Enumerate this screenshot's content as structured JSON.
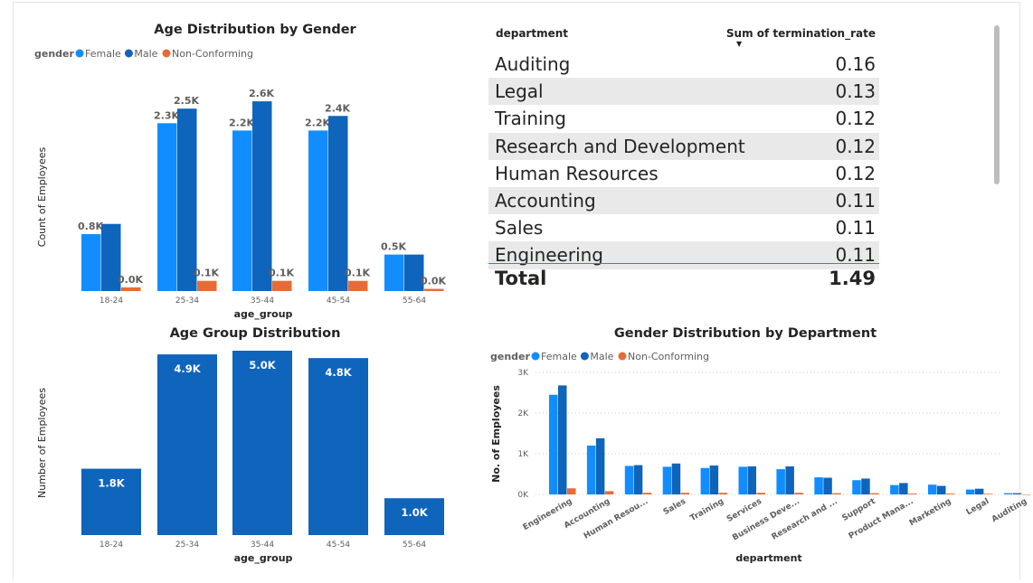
{
  "chart_data": [
    {
      "type": "bar",
      "title": "Age Distribution by Gender",
      "xlabel": "age_group",
      "ylabel": "Count of Employees",
      "legend_title": "gender",
      "legend_position": "top-left",
      "categories": [
        "18-24",
        "25-34",
        "35-44",
        "45-54",
        "55-64"
      ],
      "series": [
        {
          "name": "Female",
          "color": "#118dff",
          "values": [
            780,
            2300,
            2200,
            2200,
            500
          ],
          "labels": [
            "0.8K",
            "2.3K",
            "2.2K",
            "2.2K",
            "0.5K"
          ]
        },
        {
          "name": "Male",
          "color": "#0f64bc",
          "values": [
            920,
            2500,
            2600,
            2400,
            500
          ],
          "labels": [
            "",
            "2.5K",
            "2.6K",
            "2.4K",
            ""
          ]
        },
        {
          "name": "Non-Conforming",
          "color": "#e66c37",
          "values": [
            50,
            140,
            140,
            140,
            30
          ],
          "labels": [
            "0.0K",
            "0.1K",
            "0.1K",
            "0.1K",
            "0.0K"
          ]
        }
      ],
      "ylim": [
        0,
        2750
      ],
      "grid": false
    },
    {
      "type": "bar",
      "title": "Age Group Distribution",
      "xlabel": "age_group",
      "ylabel": "Number of Employees",
      "categories": [
        "18-24",
        "25-34",
        "35-44",
        "45-54",
        "55-64"
      ],
      "series": [
        {
          "color": "#0f64bc",
          "values": [
            1800,
            4900,
            5000,
            4800,
            1000
          ],
          "labels": [
            "1.8K",
            "4.9K",
            "5.0K",
            "4.8K",
            "1.0K"
          ]
        }
      ],
      "ylim": [
        0,
        5000
      ],
      "grid": false
    },
    {
      "type": "table",
      "columns": [
        "department",
        "Sum of termination_rate"
      ],
      "sorted_by": "Sum of termination_rate",
      "rows": [
        [
          "Auditing",
          "0.16"
        ],
        [
          "Legal",
          "0.13"
        ],
        [
          "Training",
          "0.12"
        ],
        [
          "Research and Development",
          "0.12"
        ],
        [
          "Human Resources",
          "0.12"
        ],
        [
          "Accounting",
          "0.11"
        ],
        [
          "Sales",
          "0.11"
        ],
        [
          "Engineering",
          "0.11"
        ]
      ],
      "total_label": "Total",
      "total_value": "1.49"
    },
    {
      "type": "bar",
      "title": "Gender Distribution by Department",
      "xlabel": "department",
      "ylabel": "No. of Employees",
      "legend_title": "gender",
      "legend_position": "top-left",
      "categories": [
        "Engineering",
        "Accounting",
        "Human Resou...",
        "Sales",
        "Training",
        "Services",
        "Business Deve...",
        "Research and ...",
        "Support",
        "Product Mana...",
        "Marketing",
        "Legal",
        "Auditing"
      ],
      "series": [
        {
          "name": "Female",
          "color": "#118dff",
          "values": [
            2450,
            1200,
            700,
            680,
            650,
            680,
            620,
            420,
            350,
            230,
            240,
            120,
            30
          ]
        },
        {
          "name": "Male",
          "color": "#0f64bc",
          "values": [
            2680,
            1380,
            720,
            760,
            710,
            690,
            690,
            410,
            390,
            280,
            210,
            140,
            30
          ]
        },
        {
          "name": "Non-Conforming",
          "color": "#e66c37",
          "values": [
            150,
            80,
            40,
            40,
            40,
            40,
            40,
            30,
            30,
            20,
            20,
            15,
            0
          ]
        }
      ],
      "yticks": [
        "0K",
        "1K",
        "2K",
        "3K"
      ],
      "ylim": [
        0,
        3000
      ],
      "grid": true
    }
  ]
}
